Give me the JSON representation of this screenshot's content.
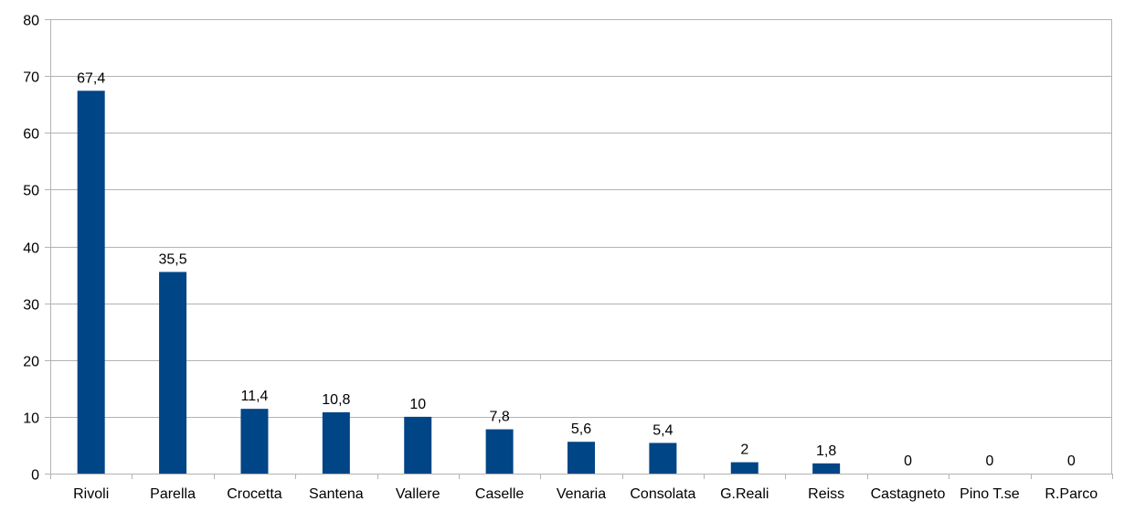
{
  "chart_data": {
    "type": "bar",
    "categories": [
      "Rivoli",
      "Parella",
      "Crocetta",
      "Santena",
      "Vallere",
      "Caselle",
      "Venaria",
      "Consolata",
      "G.Reali",
      "Reiss",
      "Castagneto",
      "Pino T.se",
      "R.Parco"
    ],
    "values": [
      67.4,
      35.5,
      11.4,
      10.8,
      10,
      7.8,
      5.6,
      5.4,
      2,
      1.8,
      0,
      0,
      0
    ],
    "value_labels": [
      "67,4",
      "35,5",
      "11,4",
      "10,8",
      "10",
      "7,8",
      "5,6",
      "5,4",
      "2",
      "1,8",
      "0",
      "0",
      "0"
    ],
    "ylim": [
      0,
      80
    ],
    "yticks": [
      0,
      10,
      20,
      30,
      40,
      50,
      60,
      70,
      80
    ],
    "grid": true,
    "legend": false,
    "title": "",
    "xlabel": "",
    "ylabel": "",
    "colors": {
      "bar": "#004586",
      "grid": "#b3b3b3",
      "text": "#000000"
    }
  }
}
